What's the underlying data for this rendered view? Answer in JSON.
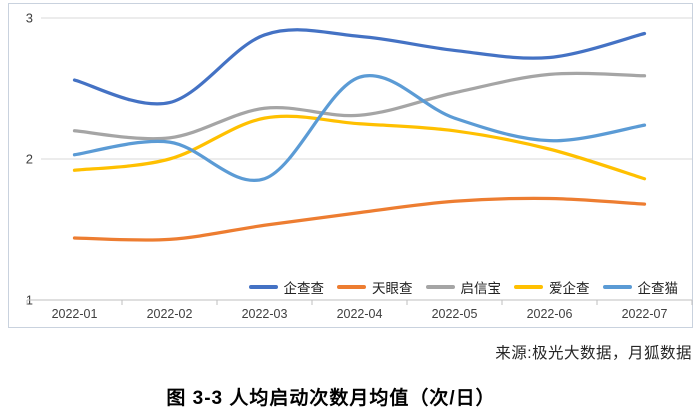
{
  "page": {
    "caption": "图 3-3 人均启动次数月均值（次/日）",
    "source_note": "来源:极光大数据，月狐数据"
  },
  "chart_data": {
    "type": "line",
    "title": "",
    "xlabel": "",
    "ylabel": "",
    "categories": [
      "2022-01",
      "2022-02",
      "2022-03",
      "2022-04",
      "2022-05",
      "2022-06",
      "2022-07"
    ],
    "series": [
      {
        "name": "企查查",
        "color": "#4472C4",
        "values": [
          2.56,
          2.4,
          2.88,
          2.87,
          2.77,
          2.72,
          2.89
        ]
      },
      {
        "name": "天眼查",
        "color": "#ED7D31",
        "values": [
          1.44,
          1.43,
          1.53,
          1.62,
          1.7,
          1.72,
          1.68
        ]
      },
      {
        "name": "启信宝",
        "color": "#A5A5A5",
        "values": [
          2.2,
          2.15,
          2.36,
          2.31,
          2.47,
          2.6,
          2.59
        ]
      },
      {
        "name": "爱企查",
        "color": "#FFC000",
        "values": [
          1.92,
          2.0,
          2.29,
          2.25,
          2.2,
          2.07,
          1.86
        ]
      },
      {
        "name": "企查猫",
        "color": "#5B9BD5",
        "values": [
          2.03,
          2.12,
          1.86,
          2.58,
          2.29,
          2.13,
          2.24
        ]
      }
    ],
    "ylim": [
      1,
      3
    ],
    "yticks": [
      1,
      2,
      3
    ],
    "grid": true,
    "smooth": true,
    "line_width": 3.25,
    "legend_position": "bottom-right",
    "gridline_color": "#d9d9d9",
    "axis_line_color": "#bfbfbf",
    "tick_label_color": "#404040"
  }
}
